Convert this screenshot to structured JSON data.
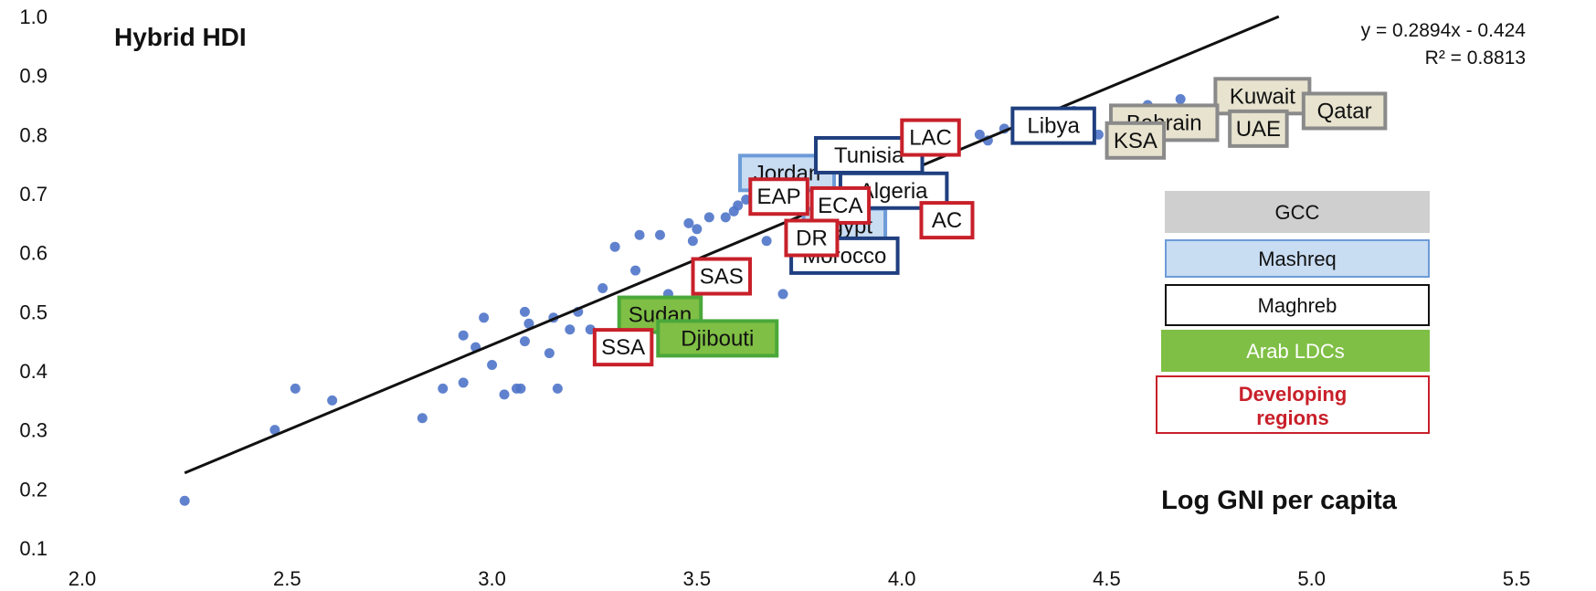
{
  "chart_data": {
    "type": "scatter",
    "title": "Hybrid HDI",
    "xlabel": "Log GNI per capita",
    "ylabel": "",
    "xlim": [
      2.0,
      5.5
    ],
    "ylim": [
      0.1,
      1.0
    ],
    "x_ticks": [
      "2.0",
      "2.5",
      "3.0",
      "3.5",
      "4.0",
      "4.5",
      "5.0",
      "5.5"
    ],
    "y_ticks": [
      "0.1",
      "0.2",
      "0.3",
      "0.4",
      "0.5",
      "0.6",
      "0.7",
      "0.8",
      "0.9",
      "1.0"
    ],
    "grid": false,
    "trendline": {
      "equation": "y = 0.2894x - 0.424",
      "r2": "R² = 0.8813",
      "slope": 0.2894,
      "intercept": -0.424,
      "x_range": [
        2.25,
        4.92
      ]
    },
    "points": [
      {
        "x": 2.25,
        "y": 0.18
      },
      {
        "x": 2.47,
        "y": 0.3
      },
      {
        "x": 2.52,
        "y": 0.37
      },
      {
        "x": 2.61,
        "y": 0.35
      },
      {
        "x": 2.83,
        "y": 0.32
      },
      {
        "x": 2.88,
        "y": 0.37
      },
      {
        "x": 2.93,
        "y": 0.38
      },
      {
        "x": 2.93,
        "y": 0.46
      },
      {
        "x": 2.96,
        "y": 0.44
      },
      {
        "x": 2.98,
        "y": 0.49
      },
      {
        "x": 3.0,
        "y": 0.41
      },
      {
        "x": 3.03,
        "y": 0.36
      },
      {
        "x": 3.06,
        "y": 0.37
      },
      {
        "x": 3.07,
        "y": 0.37
      },
      {
        "x": 3.08,
        "y": 0.45
      },
      {
        "x": 3.08,
        "y": 0.5
      },
      {
        "x": 3.09,
        "y": 0.48
      },
      {
        "x": 3.14,
        "y": 0.43
      },
      {
        "x": 3.15,
        "y": 0.49
      },
      {
        "x": 3.16,
        "y": 0.37
      },
      {
        "x": 3.19,
        "y": 0.47
      },
      {
        "x": 3.21,
        "y": 0.5
      },
      {
        "x": 3.24,
        "y": 0.47
      },
      {
        "x": 3.27,
        "y": 0.54
      },
      {
        "x": 3.3,
        "y": 0.61
      },
      {
        "x": 3.35,
        "y": 0.57
      },
      {
        "x": 3.36,
        "y": 0.63
      },
      {
        "x": 3.41,
        "y": 0.63
      },
      {
        "x": 3.43,
        "y": 0.53
      },
      {
        "x": 3.48,
        "y": 0.65
      },
      {
        "x": 3.49,
        "y": 0.62
      },
      {
        "x": 3.5,
        "y": 0.64
      },
      {
        "x": 3.53,
        "y": 0.66
      },
      {
        "x": 3.57,
        "y": 0.66
      },
      {
        "x": 3.59,
        "y": 0.67
      },
      {
        "x": 3.6,
        "y": 0.68
      },
      {
        "x": 3.62,
        "y": 0.69
      },
      {
        "x": 3.67,
        "y": 0.62
      },
      {
        "x": 3.69,
        "y": 0.7
      },
      {
        "x": 3.71,
        "y": 0.53
      },
      {
        "x": 3.74,
        "y": 0.72
      },
      {
        "x": 3.78,
        "y": 0.73
      },
      {
        "x": 3.82,
        "y": 0.74
      },
      {
        "x": 3.86,
        "y": 0.75
      },
      {
        "x": 3.91,
        "y": 0.77
      },
      {
        "x": 3.95,
        "y": 0.77
      },
      {
        "x": 3.97,
        "y": 0.75
      },
      {
        "x": 4.02,
        "y": 0.77
      },
      {
        "x": 4.12,
        "y": 0.78
      },
      {
        "x": 4.19,
        "y": 0.8
      },
      {
        "x": 4.21,
        "y": 0.79
      },
      {
        "x": 4.25,
        "y": 0.81
      },
      {
        "x": 4.3,
        "y": 0.82
      },
      {
        "x": 4.35,
        "y": 0.83
      },
      {
        "x": 4.42,
        "y": 0.84
      },
      {
        "x": 4.48,
        "y": 0.8
      },
      {
        "x": 4.53,
        "y": 0.84
      },
      {
        "x": 4.6,
        "y": 0.85
      },
      {
        "x": 4.68,
        "y": 0.86
      },
      {
        "x": 4.78,
        "y": 0.86
      },
      {
        "x": 4.85,
        "y": 0.86
      },
      {
        "x": 4.95,
        "y": 0.87
      }
    ],
    "labels": [
      {
        "text": "Kuwait",
        "group": "gcc",
        "x": 4.88,
        "y": 0.865
      },
      {
        "text": "Qatar",
        "group": "gcc",
        "x": 5.08,
        "y": 0.84
      },
      {
        "text": "Bahrain",
        "group": "gcc",
        "x": 4.64,
        "y": 0.82
      },
      {
        "text": "UAE",
        "group": "gcc",
        "x": 4.87,
        "y": 0.81
      },
      {
        "text": "KSA",
        "group": "gcc",
        "x": 4.57,
        "y": 0.79
      },
      {
        "text": "Libya",
        "group": "maghreb",
        "x": 4.37,
        "y": 0.815
      },
      {
        "text": "Tunisia",
        "group": "maghreb",
        "x": 3.92,
        "y": 0.765
      },
      {
        "text": "Algeria",
        "group": "maghreb",
        "x": 3.98,
        "y": 0.705
      },
      {
        "text": "Morocco",
        "group": "maghreb",
        "x": 3.86,
        "y": 0.595
      },
      {
        "text": "Jordan",
        "group": "mashreq",
        "x": 3.72,
        "y": 0.735
      },
      {
        "text": "Egypt",
        "group": "mashreq",
        "x": 3.86,
        "y": 0.645
      },
      {
        "text": "Sudan",
        "group": "arab_ldc",
        "x": 3.41,
        "y": 0.495
      },
      {
        "text": "Djibouti",
        "group": "arab_ldc",
        "x": 3.55,
        "y": 0.455
      },
      {
        "text": "LAC",
        "group": "developing",
        "x": 4.07,
        "y": 0.795
      },
      {
        "text": "EAP",
        "group": "developing",
        "x": 3.7,
        "y": 0.695
      },
      {
        "text": "ECA",
        "group": "developing",
        "x": 3.85,
        "y": 0.68
      },
      {
        "text": "AC",
        "group": "developing",
        "x": 4.11,
        "y": 0.655
      },
      {
        "text": "DR",
        "group": "developing",
        "x": 3.78,
        "y": 0.625
      },
      {
        "text": "SAS",
        "group": "developing",
        "x": 3.56,
        "y": 0.56
      },
      {
        "text": "SSA",
        "group": "developing",
        "x": 3.32,
        "y": 0.44
      }
    ],
    "legend": {
      "position": "right",
      "items": [
        {
          "key": "gcc",
          "label": "GCC"
        },
        {
          "key": "mashreq",
          "label": "Mashreq"
        },
        {
          "key": "maghreb",
          "label": "Maghreb"
        },
        {
          "key": "arab_ldc",
          "label": "Arab LDCs"
        },
        {
          "key": "developing",
          "label": "Developing regions"
        }
      ]
    },
    "colors": {
      "points": "#4f74c9",
      "trendline": "#111111",
      "gcc_fill": "#e7e3cf",
      "gcc_border": "#8a8a8a",
      "gcc_legend_fill": "#cfcfcf",
      "mashreq_fill": "#c8dcf2",
      "mashreq_border": "#6d9bd8",
      "maghreb_fill": "#ffffff",
      "maghreb_border": "#1f3f7f",
      "arab_ldc_fill": "#7fbf45",
      "arab_ldc_border": "#4aa83a",
      "developing_fill": "#ffffff",
      "developing_border": "#c8202a",
      "developing_text": "#c8202a"
    }
  }
}
